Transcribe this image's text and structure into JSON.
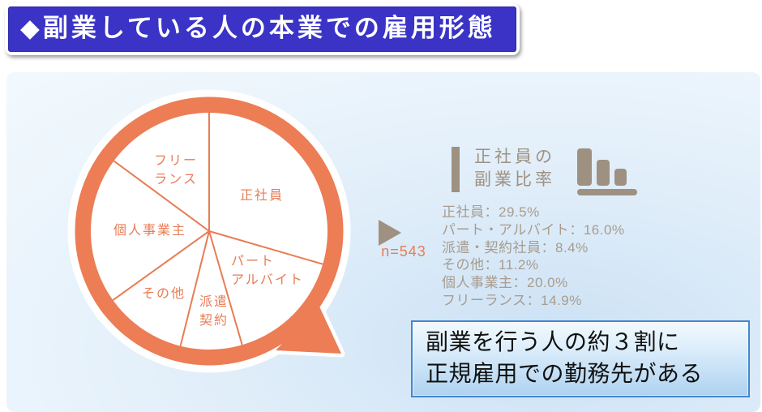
{
  "header": {
    "title": "◆副業している人の本業での雇用形態"
  },
  "chart_data": {
    "type": "pie",
    "title": "副業している人の本業での雇用形態",
    "sample_label": "n=543",
    "direction": "clockwise",
    "start_angle_deg": 0,
    "segments": [
      {
        "label": "正社員",
        "value": 29.5,
        "label_lines": [
          "正社員"
        ]
      },
      {
        "label": "パート・アルバイト",
        "value": 16.0,
        "label_lines": [
          "パート",
          "アルバイト"
        ]
      },
      {
        "label": "派遣・契約",
        "value": 8.4,
        "label_lines": [
          "派遣",
          "契約"
        ]
      },
      {
        "label": "その他",
        "value": 11.2,
        "label_lines": [
          "その他"
        ]
      },
      {
        "label": "個人事業主",
        "value": 20.0,
        "label_lines": [
          "個人事業主"
        ]
      },
      {
        "label": "フリーランス",
        "value": 14.9,
        "label_lines": [
          "フリー",
          "ランス"
        ]
      }
    ]
  },
  "stats": {
    "heading_lines": [
      "正社員の",
      "副業比率"
    ],
    "items": [
      "正社員：29.5%",
      "パート・アルバイト：16.0%",
      "派遣・契約社員：8.4%",
      "その他：11.2%",
      "個人事業主：20.0%",
      "フリーランス：14.9%"
    ]
  },
  "callout": {
    "lines": [
      "副業を行う人の約３割に",
      "正規雇用での勤務先がある"
    ]
  },
  "colors": {
    "accent_orange": "#EC7D55",
    "label_orange": "#E87C55",
    "warm_gray": "#9E9181",
    "title_blue": "#3A33C6",
    "callout_border": "#4586CC"
  }
}
